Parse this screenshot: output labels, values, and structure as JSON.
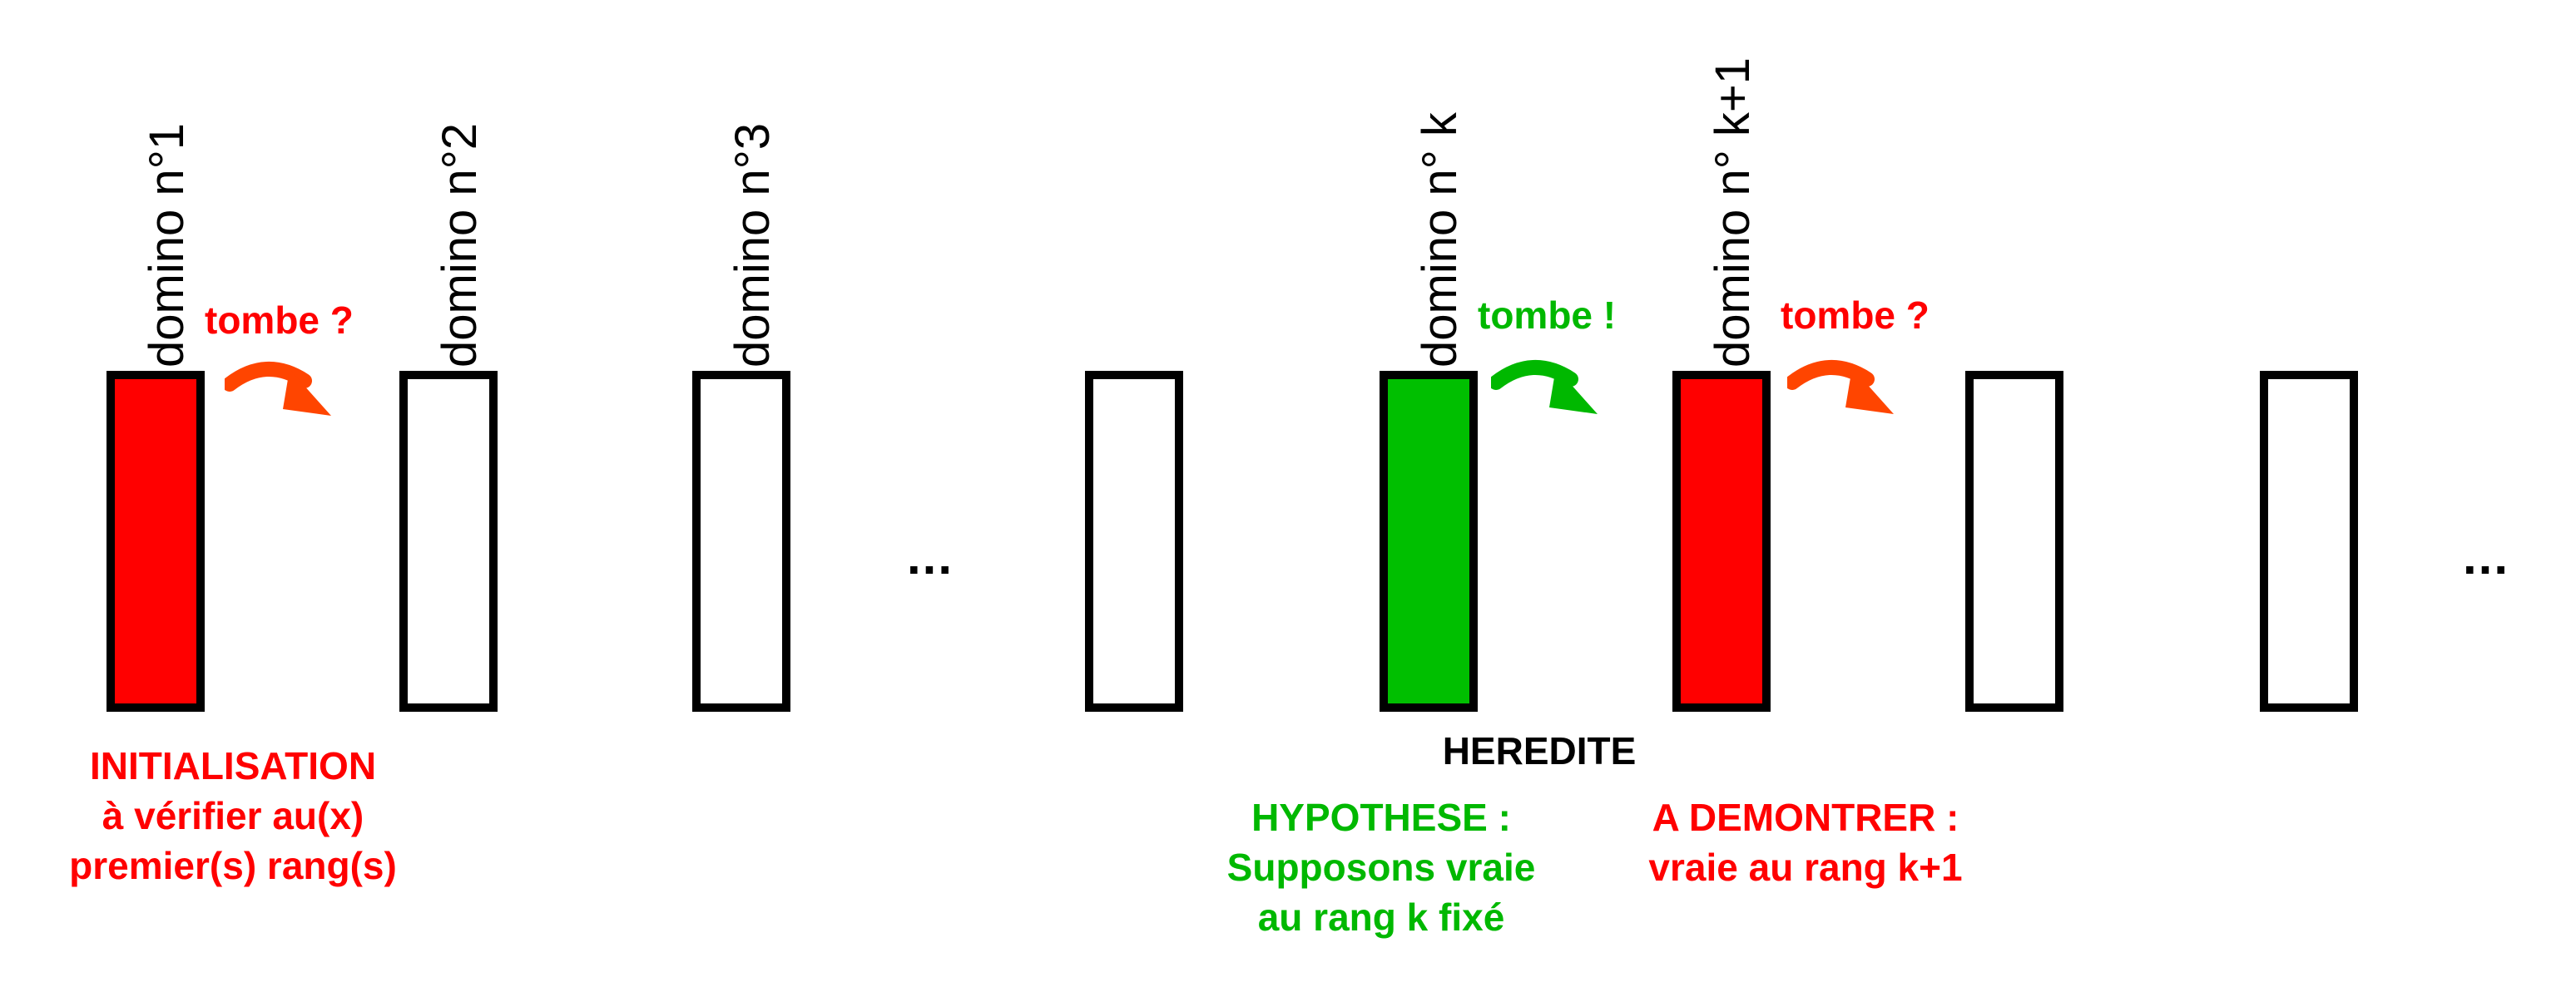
{
  "dominos": [
    {
      "label": "domino n°1",
      "fill": "#ff0000"
    },
    {
      "label": "domino n°2",
      "fill": "#ffffff"
    },
    {
      "label": "domino n°3",
      "fill": "#ffffff"
    },
    {
      "label": "",
      "fill": "#ffffff"
    },
    {
      "label": "domino n° k",
      "fill": "#00bf00"
    },
    {
      "label": "domino n° k+1",
      "fill": "#ff0000"
    },
    {
      "label": "",
      "fill": "#ffffff"
    },
    {
      "label": "",
      "fill": "#ffffff"
    }
  ],
  "arrows": [
    {
      "text": "tombe ?",
      "color": "#ff0000",
      "arrow_color": "#ff4500"
    },
    {
      "text": "tombe !",
      "color": "#00b800",
      "arrow_color": "#00b800"
    },
    {
      "text": "tombe ?",
      "color": "#ff0000",
      "arrow_color": "#ff4500"
    }
  ],
  "ellipsis": [
    "...",
    "..."
  ],
  "initialisation": {
    "line1": "INITIALISATION",
    "line2": "à vérifier au(x)",
    "line3": "premier(s) rang(s)"
  },
  "heredite": {
    "title": "HEREDITE",
    "hypothese": {
      "line1": "HYPOTHESE :",
      "line2": "Supposons vraie",
      "line3": "au rang k fixé"
    },
    "demontrer": {
      "line1": "A DEMONTRER :",
      "line2": "vraie au rang k+1"
    }
  }
}
